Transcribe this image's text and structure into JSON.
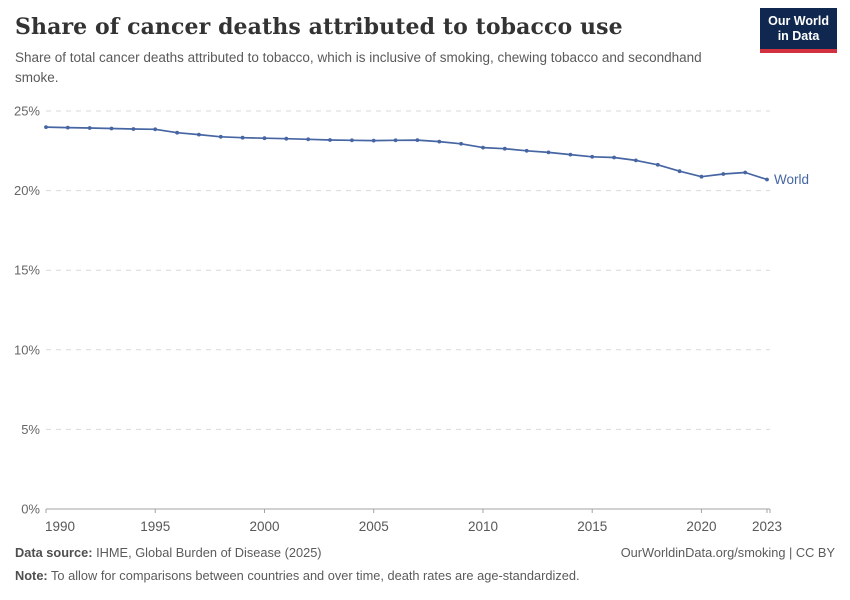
{
  "header": {
    "title": "Share of cancer deaths attributed to tobacco use",
    "subtitle": "Share of total cancer deaths attributed to tobacco, which is inclusive of smoking, chewing tobacco and secondhand smoke.",
    "logo": {
      "line1": "Our World",
      "line2": "in Data",
      "bg_color": "#102850",
      "accent_color": "#d2323f"
    }
  },
  "chart_data": {
    "type": "line",
    "title": "Share of cancer deaths attributed to tobacco use",
    "xlabel": "",
    "ylabel": "",
    "unit": "%",
    "xlim": [
      1990,
      2023
    ],
    "ylim": [
      0,
      25
    ],
    "grid": "horizontal-dashed",
    "legend_position": "end-of-line",
    "x": [
      1990,
      1991,
      1992,
      1993,
      1994,
      1995,
      1996,
      1997,
      1998,
      1999,
      2000,
      2001,
      2002,
      2003,
      2004,
      2005,
      2006,
      2007,
      2008,
      2009,
      2010,
      2011,
      2012,
      2013,
      2014,
      2015,
      2016,
      2017,
      2018,
      2019,
      2020,
      2021,
      2022,
      2023
    ],
    "series": [
      {
        "name": "World",
        "color": "#4665a3",
        "values": [
          23.99,
          23.96,
          23.93,
          23.9,
          23.87,
          23.85,
          23.64,
          23.52,
          23.38,
          23.32,
          23.29,
          23.26,
          23.22,
          23.18,
          23.16,
          23.14,
          23.16,
          23.17,
          23.08,
          22.94,
          22.7,
          22.63,
          22.5,
          22.4,
          22.26,
          22.12,
          22.08,
          21.9,
          21.62,
          21.22,
          20.87,
          21.04,
          21.14,
          20.7
        ]
      }
    ],
    "x_ticks": [
      1990,
      1995,
      2000,
      2005,
      2010,
      2015,
      2020,
      2023
    ],
    "x_tick_labels": [
      "1990",
      "1995",
      "2000",
      "2005",
      "2010",
      "2015",
      "2020",
      "2023"
    ],
    "y_ticks": [
      0,
      5,
      10,
      15,
      20,
      25
    ],
    "y_tick_labels": [
      "0%",
      "5%",
      "10%",
      "15%",
      "20%",
      "25%"
    ],
    "gridline_color": "#d9d9d9",
    "axis_color": "#a3a3a3"
  },
  "footer": {
    "datasource_label": "Data source:",
    "datasource_value": "IHME, Global Burden of Disease (2025)",
    "link": "OurWorldinData.org/smoking | CC BY",
    "note_label": "Note:",
    "note_value": "To allow for comparisons between countries and over time, death rates are age-standardized."
  }
}
